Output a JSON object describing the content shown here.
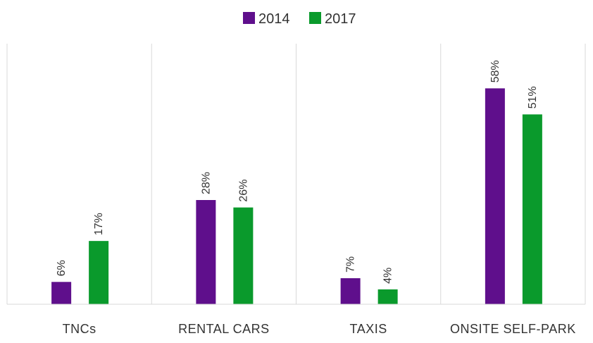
{
  "chart_data": {
    "type": "bar",
    "categories": [
      "TNCs",
      "RENTAL CARS",
      "TAXIS",
      "ONSITE SELF-PARK"
    ],
    "series": [
      {
        "name": "2014",
        "values": [
          6,
          28,
          7,
          58
        ],
        "labels": [
          "6%",
          "28%",
          "7%",
          "58%"
        ],
        "color": "#5f0f8c"
      },
      {
        "name": "2017",
        "values": [
          17,
          26,
          4,
          51
        ],
        "labels": [
          "17%",
          "26%",
          "4%",
          "51%"
        ],
        "color": "#0a9a2c"
      }
    ],
    "title": "",
    "xlabel": "",
    "ylabel": "",
    "ylim": [
      0,
      70
    ],
    "unit": "%",
    "legend_position": "top-center",
    "grid": "vertical category separators"
  }
}
